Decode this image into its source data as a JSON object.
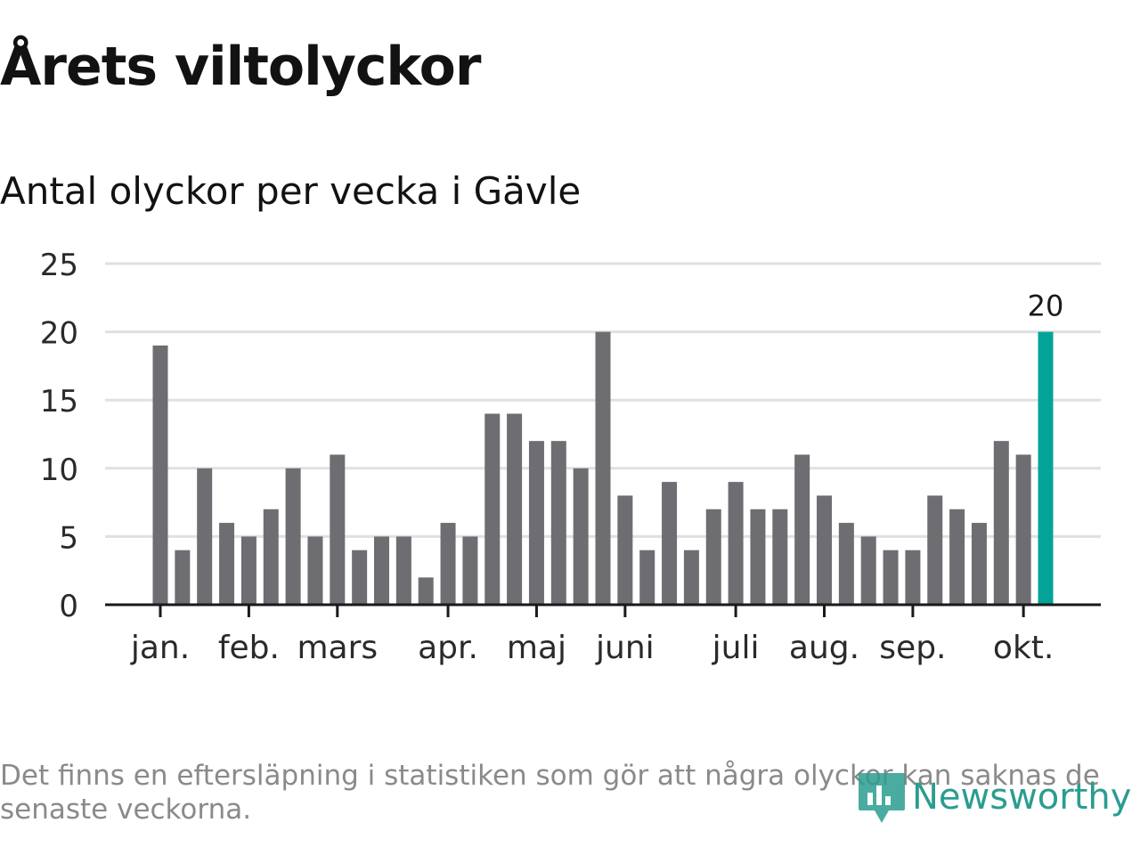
{
  "header": {
    "title": "Årets viltolyckor",
    "subtitle": "Antal olyckor per vecka i Gävle"
  },
  "chart_data": {
    "type": "bar",
    "title": "Årets viltolyckor",
    "subtitle": "Antal olyckor per vecka i Gävle",
    "xlabel": "",
    "ylabel": "",
    "ylim": [
      0,
      25
    ],
    "yticks": [
      "0",
      "5",
      "10",
      "15",
      "20",
      "25"
    ],
    "month_labels": [
      {
        "label": "jan.",
        "week": 1
      },
      {
        "label": "feb.",
        "week": 5
      },
      {
        "label": "mars",
        "week": 9
      },
      {
        "label": "apr.",
        "week": 14
      },
      {
        "label": "maj",
        "week": 18
      },
      {
        "label": "juni",
        "week": 22
      },
      {
        "label": "juli",
        "week": 27
      },
      {
        "label": "aug.",
        "week": 31
      },
      {
        "label": "sep.",
        "week": 35
      },
      {
        "label": "okt.",
        "week": 40
      }
    ],
    "values": [
      19,
      4,
      10,
      6,
      5,
      7,
      10,
      5,
      11,
      4,
      5,
      5,
      2,
      6,
      5,
      14,
      14,
      12,
      12,
      10,
      20,
      8,
      4,
      9,
      4,
      7,
      9,
      7,
      7,
      11,
      8,
      6,
      5,
      4,
      4,
      8,
      7,
      6,
      12,
      11,
      20
    ],
    "highlight_label": "20",
    "grid": true,
    "colors": {
      "bar": "#6e6d72",
      "highlight": "#03a497",
      "grid": "#e0e0e0",
      "axis": "#1a1a1a"
    }
  },
  "footer": {
    "note": "Det finns en eftersläpning i statistiken som gör att några olyckor kan saknas de senaste veckorna.",
    "brand": "Newsworthy",
    "brand_icon": "newsworthy-logo-icon",
    "brand_color": "#2a9d8f"
  }
}
